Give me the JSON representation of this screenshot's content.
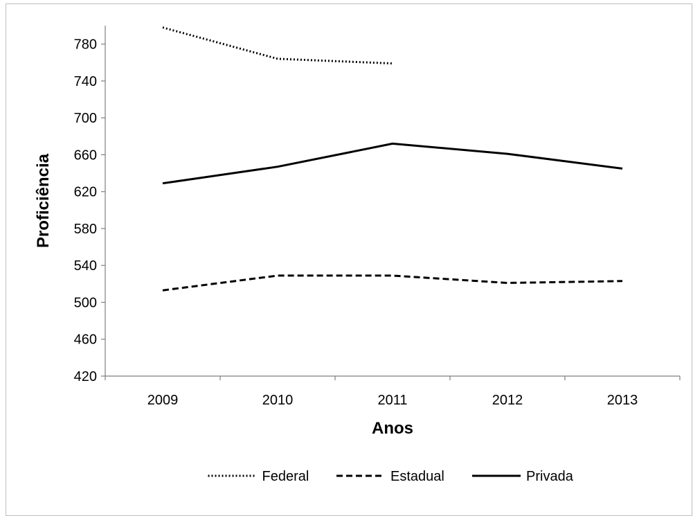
{
  "chart_data": {
    "type": "line",
    "categories": [
      "2009",
      "2010",
      "2011",
      "2012",
      "2013"
    ],
    "xlabel": "Anos",
    "ylabel": "Proficiência",
    "ylim": [
      420,
      800
    ],
    "yticks": [
      420,
      460,
      500,
      540,
      580,
      620,
      660,
      700,
      740,
      780
    ],
    "grid": false,
    "legend_position": "bottom",
    "series": [
      {
        "name": "Federal",
        "style": "dotted",
        "color": "#000000",
        "values": [
          798,
          764,
          759,
          null,
          null
        ]
      },
      {
        "name": "Estadual",
        "style": "dashed",
        "color": "#000000",
        "values": [
          513,
          529,
          529,
          521,
          523
        ]
      },
      {
        "name": "Privada",
        "style": "solid",
        "color": "#000000",
        "values": [
          629,
          647,
          672,
          661,
          645
        ]
      }
    ]
  }
}
